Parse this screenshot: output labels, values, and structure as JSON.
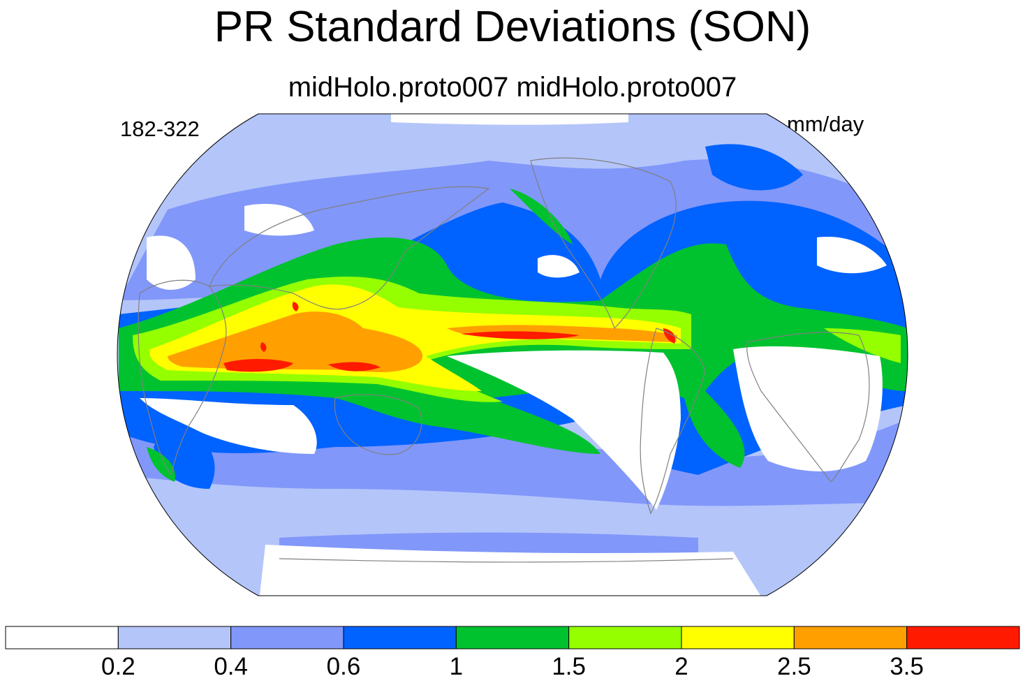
{
  "title": "PR Standard Deviations (SON)",
  "subtitle": "midHolo.proto007  midHolo.proto007",
  "left_label": "182-322",
  "units": "mm/day",
  "colorbar": {
    "levels": [
      "0.2",
      "0.4",
      "0.6",
      "1",
      "1.5",
      "2",
      "2.5",
      "3.5"
    ],
    "colors": [
      "#ffffff",
      "#b4c5fa",
      "#8197fa",
      "#0062ff",
      "#00c22f",
      "#95ff00",
      "#ffff00",
      "#ffa000",
      "#ff1a00"
    ]
  },
  "map": {
    "projection": "robinson",
    "coastline_color": "#808080",
    "background_class": "0.2-0.4 mm/day"
  }
}
